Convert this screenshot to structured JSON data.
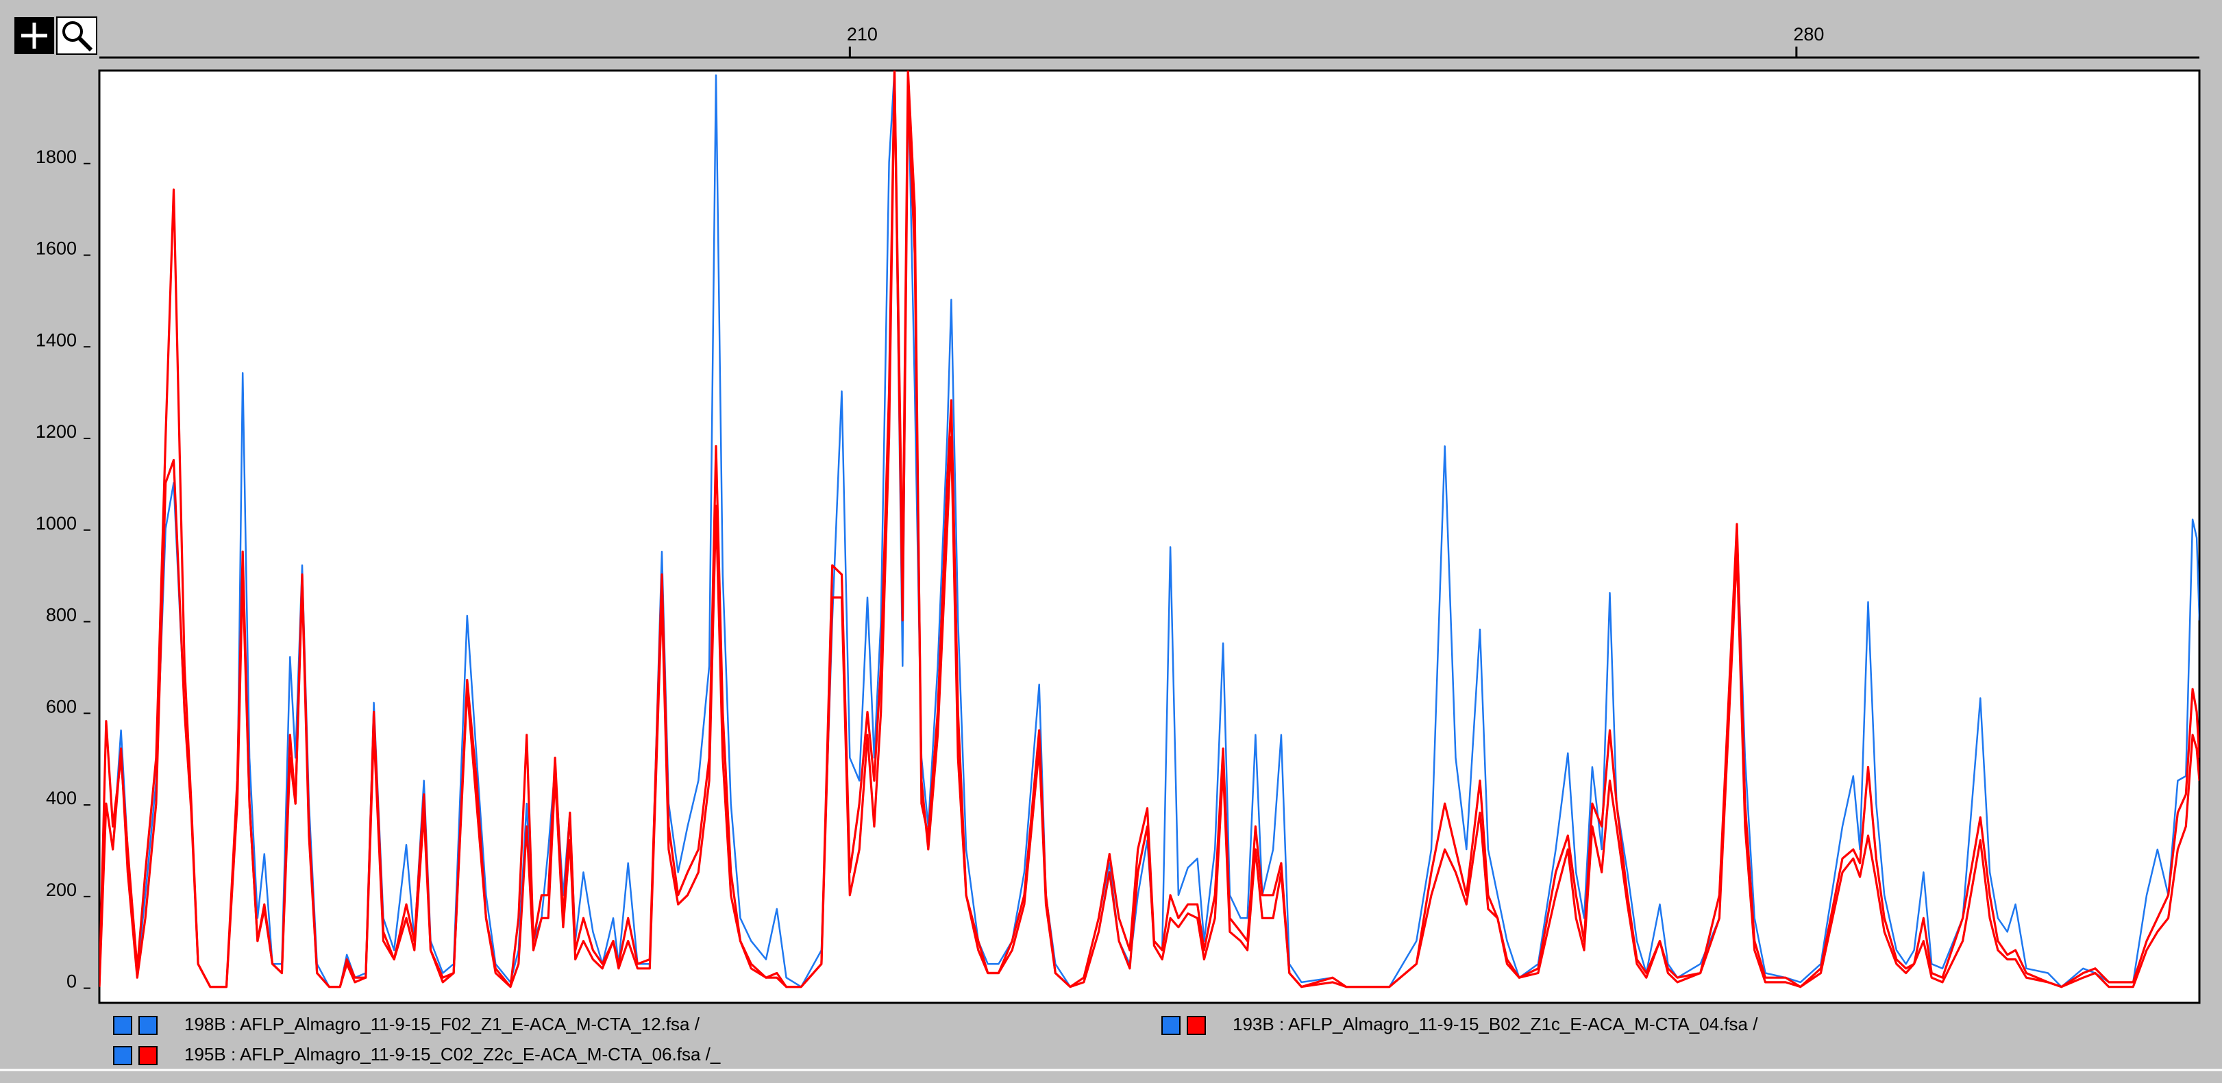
{
  "chart_data": {
    "type": "line",
    "xlim": [
      154.5,
      309.8
    ],
    "xticks": [
      210,
      280
    ],
    "ylim": [
      -35,
      2000
    ],
    "yticks": [
      0,
      200,
      400,
      600,
      800,
      1000,
      1200,
      1400,
      1600,
      1800
    ],
    "x": [
      154.5,
      155.0,
      155.5,
      156.1,
      156.6,
      157.3,
      157.9,
      158.7,
      159.4,
      160.0,
      160.8,
      161.3,
      161.8,
      162.7,
      163.9,
      164.7,
      165.1,
      165.6,
      166.2,
      166.7,
      167.3,
      168.0,
      168.6,
      169.0,
      169.5,
      170.0,
      170.6,
      171.5,
      172.3,
      172.8,
      173.4,
      174.2,
      174.8,
      175.5,
      176.3,
      177.2,
      177.8,
      178.5,
      179.0,
      179.9,
      180.7,
      181.7,
      182.4,
      183.1,
      183.8,
      184.9,
      185.5,
      186.1,
      186.6,
      187.2,
      187.7,
      188.2,
      188.8,
      189.3,
      189.7,
      190.3,
      191.0,
      191.7,
      192.5,
      192.9,
      193.6,
      194.3,
      195.2,
      196.1,
      196.6,
      197.3,
      198.0,
      198.8,
      199.6,
      200.1,
      200.6,
      201.2,
      201.9,
      202.7,
      203.8,
      204.6,
      205.3,
      206.4,
      207.9,
      208.7,
      209.4,
      210.0,
      210.7,
      211.3,
      211.8,
      212.3,
      212.9,
      213.3,
      213.9,
      214.3,
      214.8,
      215.3,
      215.8,
      216.5,
      217.2,
      217.5,
      218.0,
      218.6,
      219.5,
      220.2,
      221.0,
      222.0,
      222.9,
      224.0,
      224.5,
      225.2,
      226.3,
      227.3,
      228.4,
      229.2,
      229.9,
      230.7,
      231.3,
      232.0,
      232.5,
      233.1,
      233.7,
      234.3,
      235.0,
      235.7,
      236.2,
      237.0,
      237.6,
      238.1,
      238.9,
      239.4,
      240.0,
      240.5,
      241.3,
      241.9,
      242.5,
      243.4,
      245.7,
      246.7,
      249.9,
      251.9,
      253.0,
      254.0,
      254.8,
      255.6,
      256.6,
      257.2,
      257.9,
      258.6,
      259.5,
      260.9,
      262.2,
      263.1,
      263.7,
      264.3,
      264.9,
      265.6,
      266.2,
      266.7,
      267.5,
      268.2,
      268.9,
      269.9,
      270.5,
      271.2,
      272.9,
      274.3,
      275.6,
      276.2,
      276.9,
      277.7,
      279.2,
      280.3,
      281.8,
      283.4,
      284.2,
      284.7,
      285.3,
      285.9,
      286.5,
      287.4,
      288.1,
      288.7,
      289.4,
      290.0,
      290.8,
      292.3,
      293.6,
      294.3,
      294.9,
      295.6,
      296.2,
      297.0,
      298.6,
      299.6,
      301.2,
      302.1,
      303.1,
      304.9,
      305.9,
      306.7,
      307.5,
      308.2,
      308.8,
      309.3,
      309.6,
      309.8
    ],
    "series": [
      {
        "name": "198B : AFLP_Almagro_11-9-15_F02_Z1_E-ACA_M-CTA_12.fsa /",
        "color": "#1e78f0",
        "values": [
          0,
          400,
          300,
          560,
          300,
          30,
          200,
          450,
          1000,
          1100,
          600,
          400,
          50,
          0,
          0,
          400,
          1340,
          500,
          150,
          290,
          50,
          50,
          720,
          500,
          920,
          400,
          50,
          0,
          0,
          70,
          20,
          30,
          620,
          150,
          80,
          310,
          100,
          450,
          100,
          30,
          50,
          810,
          500,
          200,
          50,
          10,
          80,
          400,
          100,
          150,
          300,
          480,
          200,
          380,
          100,
          250,
          120,
          50,
          150,
          50,
          270,
          50,
          50,
          950,
          400,
          250,
          350,
          450,
          700,
          1990,
          900,
          400,
          150,
          100,
          60,
          170,
          20,
          0,
          80,
          800,
          1300,
          500,
          450,
          850,
          500,
          800,
          1800,
          2000,
          700,
          2000,
          1300,
          500,
          350,
          700,
          1200,
          1500,
          800,
          300,
          100,
          50,
          50,
          100,
          250,
          660,
          200,
          50,
          0,
          20,
          150,
          270,
          100,
          50,
          200,
          320,
          100,
          80,
          960,
          200,
          260,
          280,
          100,
          300,
          750,
          200,
          150,
          150,
          550,
          200,
          300,
          550,
          50,
          10,
          20,
          0,
          0,
          100,
          300,
          1180,
          500,
          300,
          780,
          300,
          200,
          100,
          20,
          50,
          300,
          510,
          250,
          150,
          480,
          300,
          860,
          400,
          250,
          100,
          30,
          180,
          50,
          20,
          50,
          150,
          1000,
          500,
          150,
          30,
          20,
          10,
          50,
          350,
          460,
          300,
          840,
          400,
          200,
          80,
          50,
          80,
          250,
          50,
          40,
          150,
          630,
          250,
          150,
          120,
          180,
          40,
          30,
          0,
          40,
          30,
          10,
          10,
          200,
          300,
          200,
          450,
          460,
          1020,
          980,
          800
        ]
      },
      {
        "name": "193B : AFLP_Almagro_11-9-15_B02_Z1c_E-ACA_M-CTA_04.fsa /",
        "color": "#ff0000",
        "values": [
          0,
          580,
          350,
          500,
          300,
          40,
          250,
          500,
          1200,
          1740,
          700,
          400,
          50,
          0,
          0,
          450,
          950,
          400,
          100,
          180,
          50,
          30,
          550,
          400,
          900,
          350,
          30,
          0,
          0,
          60,
          20,
          20,
          600,
          120,
          60,
          180,
          100,
          420,
          80,
          20,
          30,
          670,
          450,
          150,
          40,
          0,
          150,
          550,
          100,
          200,
          200,
          500,
          150,
          380,
          80,
          150,
          80,
          50,
          100,
          50,
          150,
          50,
          60,
          900,
          350,
          200,
          250,
          300,
          500,
          1180,
          600,
          250,
          100,
          50,
          20,
          30,
          0,
          0,
          50,
          920,
          900,
          250,
          400,
          600,
          450,
          700,
          1300,
          2000,
          900,
          2000,
          1700,
          400,
          330,
          600,
          1100,
          1280,
          600,
          200,
          100,
          30,
          30,
          100,
          200,
          560,
          200,
          30,
          0,
          20,
          150,
          290,
          150,
          80,
          300,
          390,
          100,
          80,
          200,
          150,
          180,
          180,
          80,
          200,
          520,
          150,
          120,
          100,
          350,
          200,
          200,
          270,
          30,
          0,
          20,
          0,
          0,
          50,
          250,
          400,
          300,
          200,
          450,
          200,
          150,
          60,
          20,
          40,
          250,
          330,
          200,
          100,
          400,
          350,
          560,
          400,
          200,
          60,
          30,
          100,
          40,
          20,
          30,
          200,
          1010,
          400,
          100,
          20,
          20,
          0,
          40,
          280,
          300,
          270,
          480,
          280,
          150,
          60,
          40,
          50,
          150,
          30,
          20,
          150,
          370,
          200,
          100,
          70,
          80,
          30,
          10,
          0,
          30,
          40,
          10,
          10,
          100,
          150,
          200,
          380,
          420,
          650,
          600,
          500
        ]
      },
      {
        "name": "195B : AFLP_Almagro_11-9-15_C02_Z2c_E-ACA_M-CTA_06.fsa /_",
        "color": "#ff0000",
        "values": [
          0,
          400,
          300,
          520,
          250,
          20,
          150,
          400,
          1100,
          1150,
          600,
          380,
          50,
          0,
          0,
          400,
          900,
          400,
          100,
          170,
          50,
          30,
          500,
          400,
          880,
          330,
          30,
          0,
          0,
          50,
          10,
          20,
          560,
          100,
          60,
          150,
          80,
          380,
          80,
          10,
          30,
          650,
          400,
          150,
          30,
          0,
          50,
          350,
          80,
          150,
          150,
          460,
          130,
          320,
          60,
          100,
          60,
          40,
          100,
          40,
          100,
          40,
          40,
          850,
          300,
          180,
          200,
          250,
          450,
          1050,
          500,
          200,
          100,
          40,
          20,
          20,
          0,
          0,
          50,
          850,
          850,
          200,
          300,
          550,
          350,
          600,
          1200,
          2000,
          800,
          1950,
          1600,
          450,
          300,
          550,
          1000,
          1200,
          500,
          200,
          80,
          30,
          30,
          80,
          180,
          520,
          180,
          30,
          0,
          10,
          120,
          250,
          100,
          40,
          250,
          350,
          90,
          60,
          150,
          130,
          160,
          150,
          60,
          150,
          480,
          120,
          100,
          80,
          300,
          150,
          150,
          250,
          30,
          0,
          10,
          0,
          0,
          50,
          200,
          300,
          250,
          180,
          380,
          170,
          150,
          50,
          20,
          30,
          200,
          300,
          150,
          80,
          350,
          250,
          450,
          350,
          180,
          50,
          20,
          100,
          30,
          10,
          30,
          150,
          950,
          350,
          80,
          10,
          10,
          0,
          30,
          250,
          280,
          240,
          330,
          230,
          120,
          50,
          30,
          50,
          100,
          20,
          10,
          100,
          320,
          150,
          80,
          60,
          60,
          20,
          10,
          0,
          20,
          30,
          0,
          0,
          80,
          120,
          150,
          300,
          350,
          550,
          520,
          450
        ]
      }
    ]
  }
}
